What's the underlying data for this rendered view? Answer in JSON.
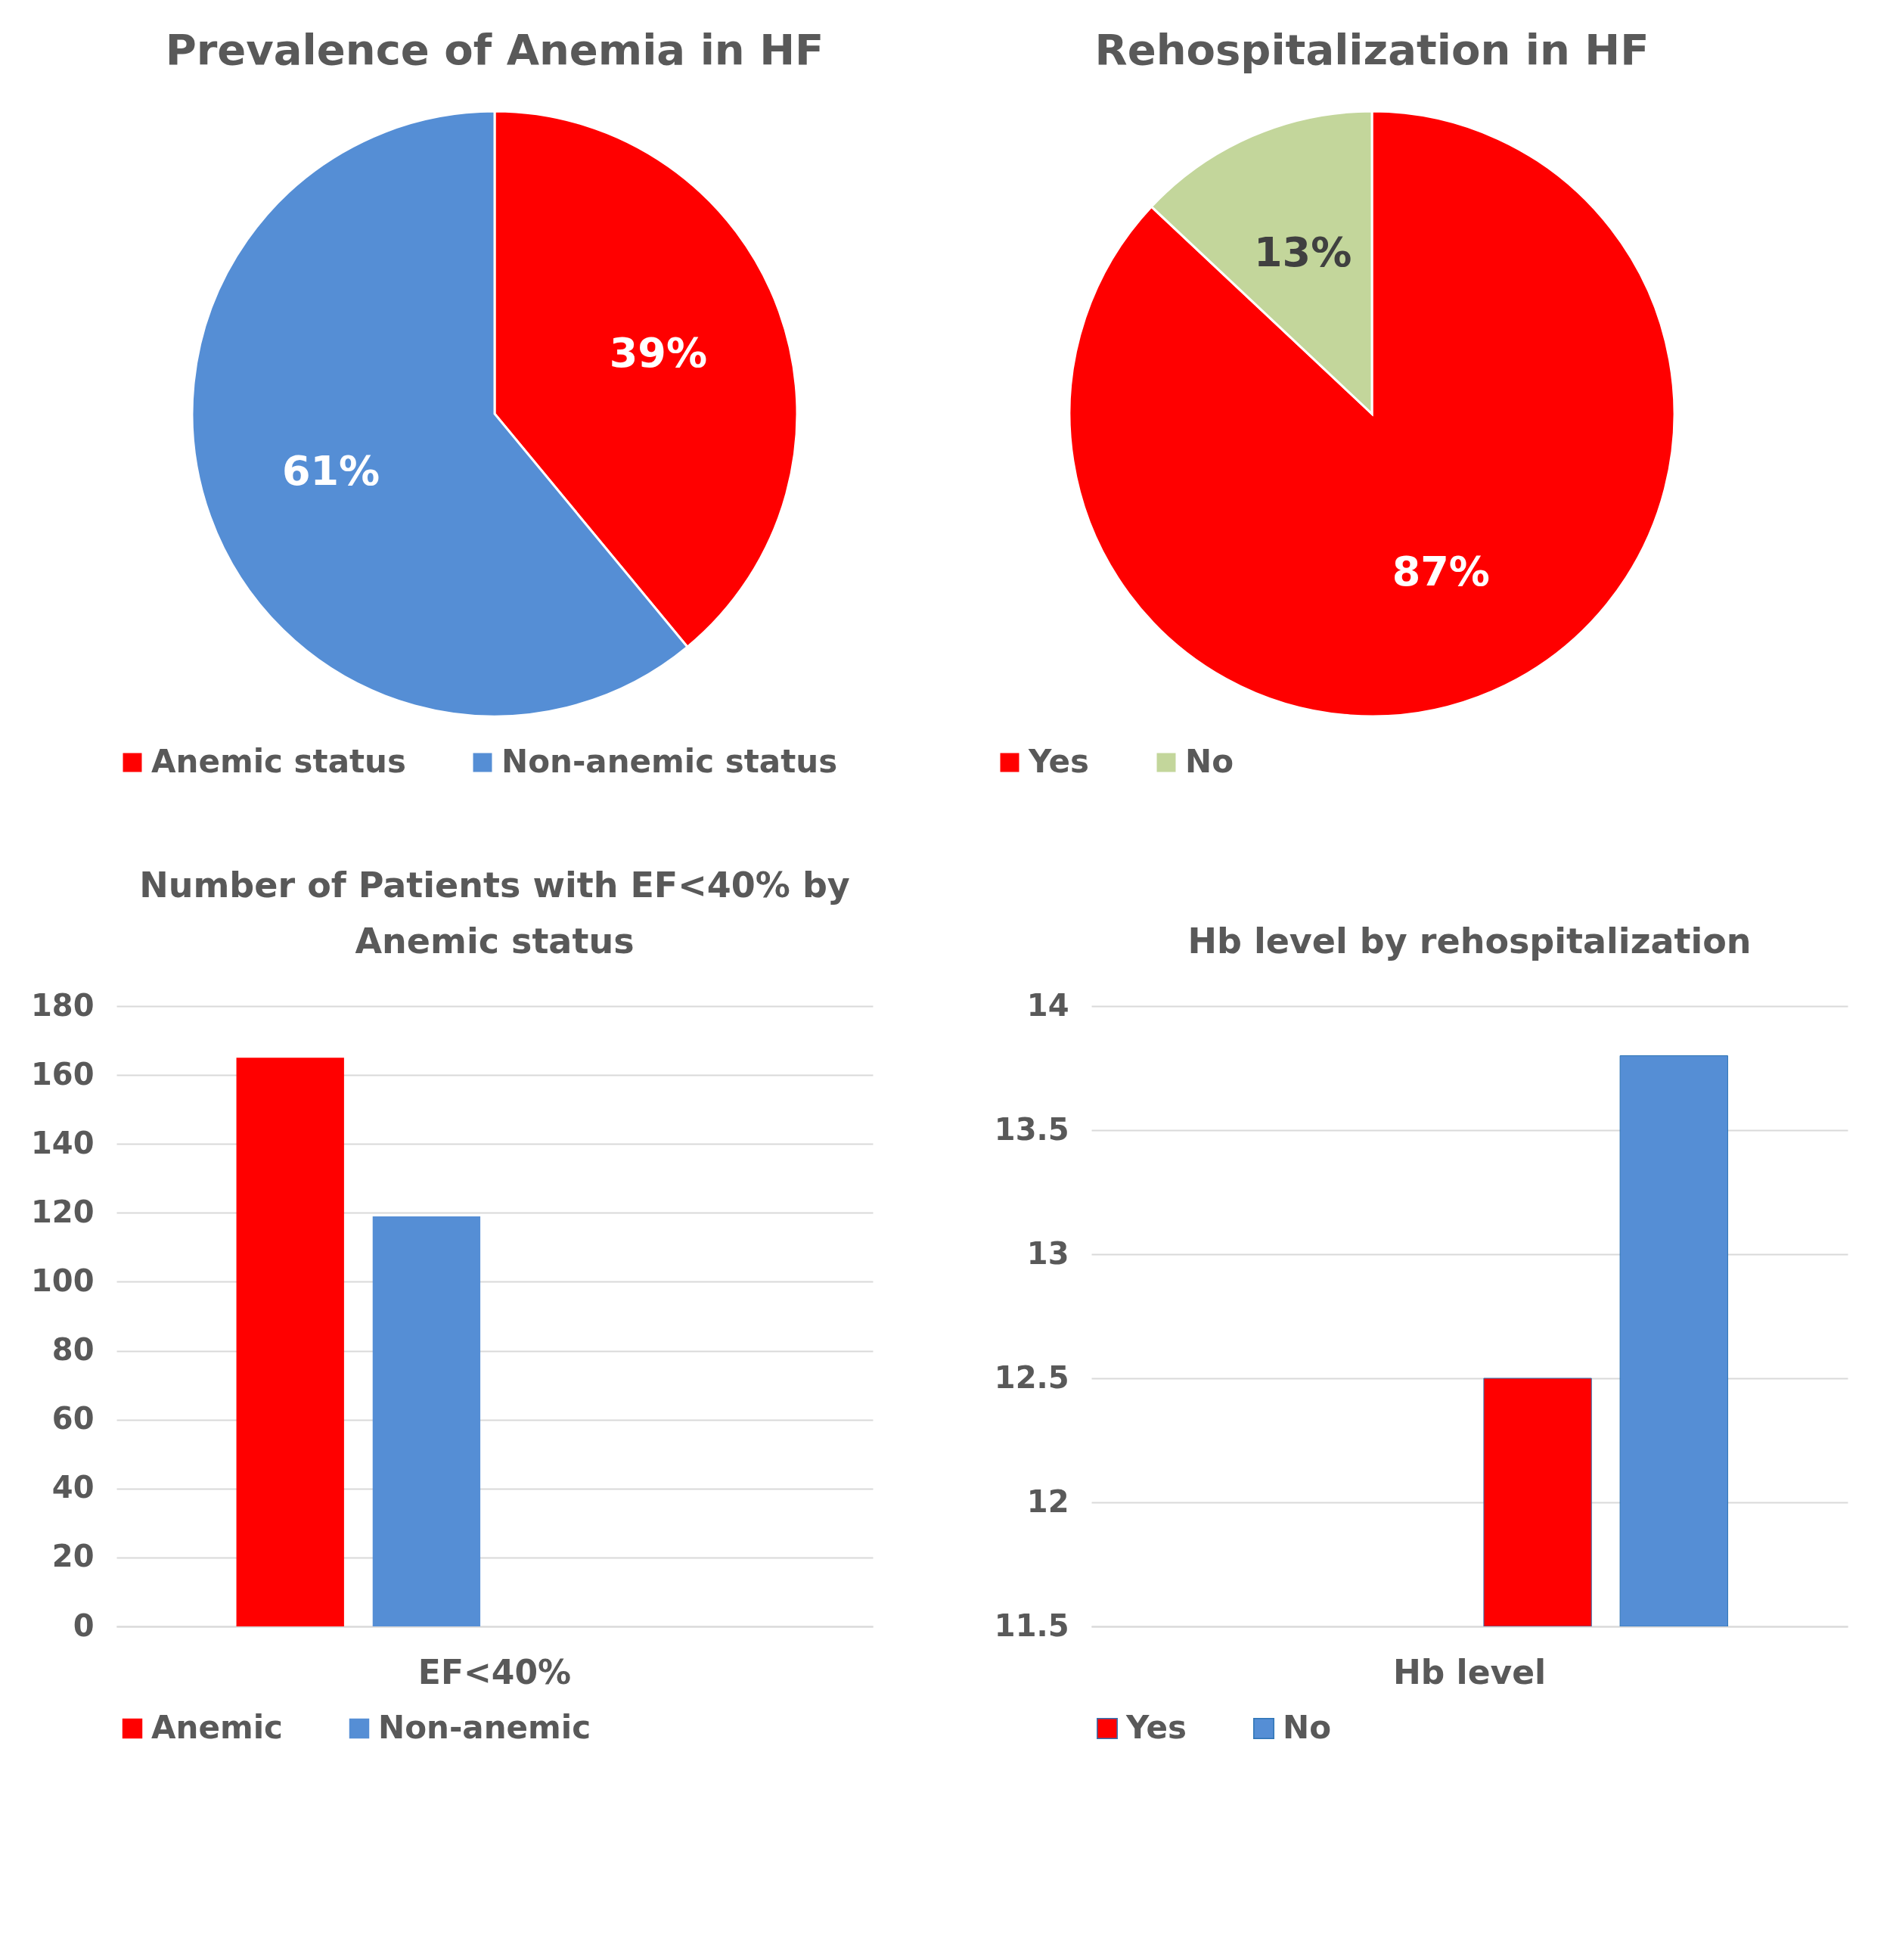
{
  "chart_data": [
    {
      "type": "pie",
      "title": "Prevalence of Anemia in HF",
      "categories": [
        "Anemic status",
        "Non-anemic status"
      ],
      "values": [
        39,
        61
      ],
      "colors": [
        "#ff0000",
        "#558ed5"
      ],
      "value_labels": [
        "39%",
        "61%"
      ],
      "legend": "bottom"
    },
    {
      "type": "pie",
      "title": "Rehospitalization in HF",
      "categories": [
        "Yes",
        "No"
      ],
      "values": [
        87,
        13
      ],
      "colors": [
        "#ff0000",
        "#c3d69b"
      ],
      "value_labels": [
        "87%",
        "13%"
      ],
      "legend": "bottom"
    },
    {
      "type": "bar",
      "title": "Number of  Patients with EF<40% by Anemic status",
      "categories": [
        "EF<40%"
      ],
      "series": [
        {
          "name": "Anemic",
          "color": "#ff0000",
          "values": [
            165
          ]
        },
        {
          "name": "Non-anemic",
          "color": "#558ed5",
          "values": [
            119
          ]
        }
      ],
      "ylim": [
        0,
        180
      ],
      "yticks": [
        0,
        20,
        40,
        60,
        80,
        100,
        120,
        140,
        160,
        180
      ],
      "grid": "y",
      "legend": "bottom"
    },
    {
      "type": "bar",
      "title": "Hb level by rehospitalization",
      "categories": [
        "Hb level"
      ],
      "series": [
        {
          "name": "Yes",
          "color": "#ff0000",
          "values": [
            12.5
          ]
        },
        {
          "name": "No",
          "color": "#558ed5",
          "values": [
            13.8
          ]
        }
      ],
      "ylim": [
        11.5,
        14
      ],
      "yticks": [
        11.5,
        12,
        12.5,
        13,
        13.5,
        14
      ],
      "grid": "y",
      "legend": "bottom"
    }
  ]
}
